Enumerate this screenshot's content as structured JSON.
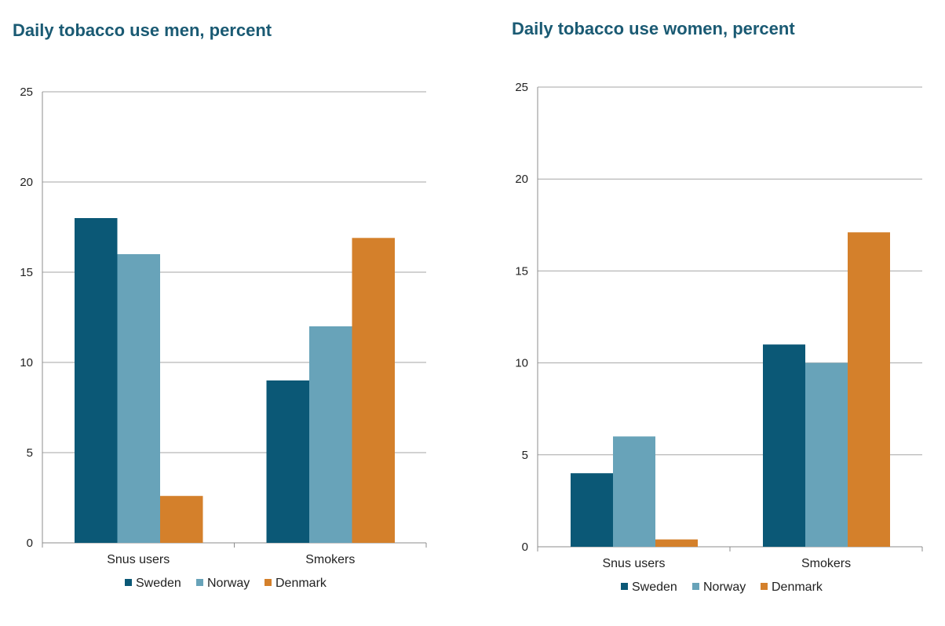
{
  "colors": {
    "title": "#1a5a73",
    "grid": "#a6a6a6",
    "axis": "#8c8c8c"
  },
  "chart_data": [
    {
      "type": "bar",
      "title": "Daily tobacco use men, percent",
      "categories": [
        "Snus users",
        "Smokers"
      ],
      "ylim": [
        0,
        25
      ],
      "yticks": [
        "0",
        "5",
        "10",
        "15",
        "20",
        "25"
      ],
      "grid": true,
      "legend_position": "bottom",
      "series": [
        {
          "name": "Sweden",
          "color": "#0b5876",
          "values": [
            18,
            9
          ]
        },
        {
          "name": "Norway",
          "color": "#68a3b9",
          "values": [
            16,
            12
          ]
        },
        {
          "name": "Denmark",
          "color": "#d4802b",
          "values": [
            2.6,
            16.9
          ]
        }
      ]
    },
    {
      "type": "bar",
      "title": "Daily tobacco use women, percent",
      "categories": [
        "Snus users",
        "Smokers"
      ],
      "ylim": [
        0,
        25
      ],
      "yticks": [
        "0",
        "5",
        "10",
        "15",
        "20",
        "25"
      ],
      "grid": true,
      "legend_position": "bottom",
      "series": [
        {
          "name": "Sweden",
          "color": "#0b5876",
          "values": [
            4,
            11
          ]
        },
        {
          "name": "Norway",
          "color": "#68a3b9",
          "values": [
            6,
            10
          ]
        },
        {
          "name": "Denmark",
          "color": "#d4802b",
          "values": [
            0.4,
            17.1
          ]
        }
      ]
    }
  ]
}
